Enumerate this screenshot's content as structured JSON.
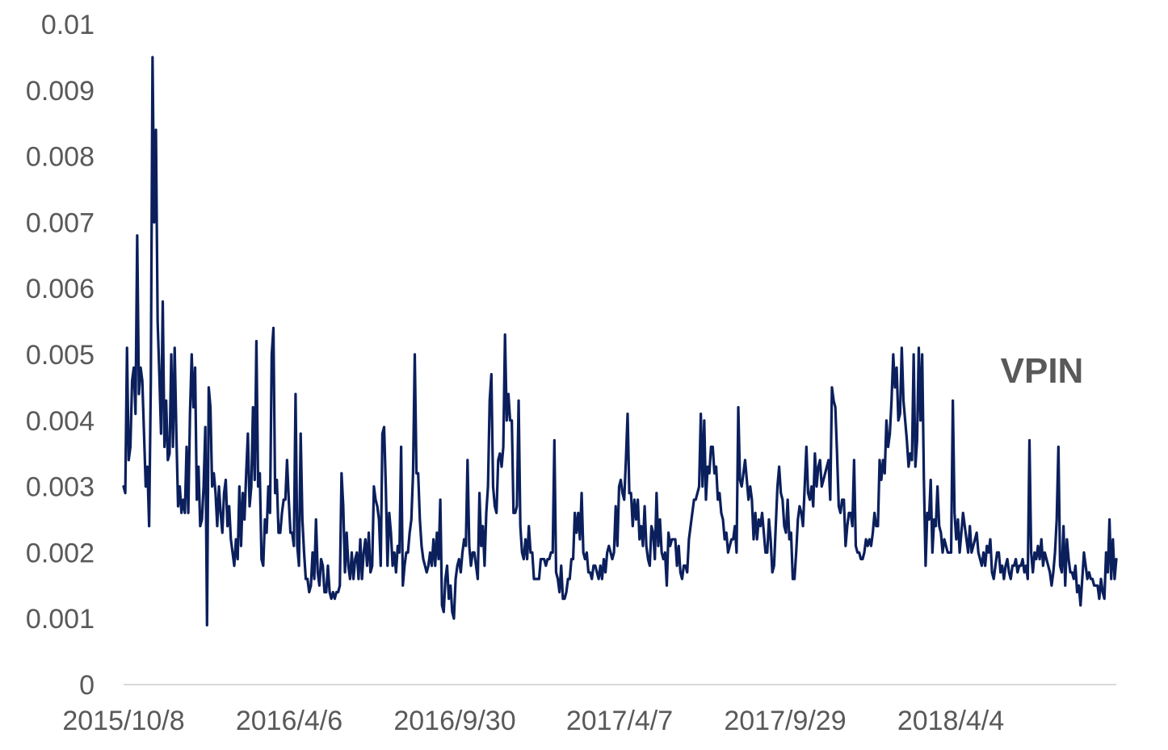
{
  "chart_data": {
    "type": "line",
    "title": "",
    "xlabel": "",
    "ylabel": "",
    "ylim": [
      0,
      0.01
    ],
    "yticks": [
      "0",
      "0.001",
      "0.002",
      "0.003",
      "0.004",
      "0.005",
      "0.006",
      "0.007",
      "0.008",
      "0.009",
      "0.01"
    ],
    "xticks": [
      "2015/10/8",
      "2016/4/6",
      "2016/9/30",
      "2017/4/7",
      "2017/9/29",
      "2018/4/4"
    ],
    "grid": false,
    "legend_position": "top-right",
    "color": "#0b1f5c",
    "series": [
      {
        "name": "VPIN",
        "values": [
          0.003,
          0.0029,
          0.0051,
          0.0034,
          0.0036,
          0.0046,
          0.0048,
          0.0041,
          0.0068,
          0.0044,
          0.0048,
          0.0046,
          0.0038,
          0.003,
          0.0033,
          0.0024,
          0.0046,
          0.0095,
          0.007,
          0.0084,
          0.0055,
          0.0047,
          0.0038,
          0.0058,
          0.0036,
          0.0043,
          0.0034,
          0.0035,
          0.005,
          0.0036,
          0.0051,
          0.0038,
          0.0027,
          0.003,
          0.0026,
          0.0028,
          0.0026,
          0.0036,
          0.0026,
          0.0041,
          0.005,
          0.0042,
          0.0048,
          0.0028,
          0.0033,
          0.0024,
          0.0025,
          0.003,
          0.0039,
          0.0009,
          0.0045,
          0.0042,
          0.003,
          0.0032,
          0.0029,
          0.0024,
          0.003,
          0.0026,
          0.0023,
          0.0029,
          0.0031,
          0.0024,
          0.0027,
          0.0022,
          0.002,
          0.0018,
          0.0022,
          0.0019,
          0.003,
          0.0021,
          0.0029,
          0.0025,
          0.0032,
          0.0038,
          0.0027,
          0.003,
          0.0042,
          0.0031,
          0.0052,
          0.003,
          0.0032,
          0.0019,
          0.0018,
          0.0025,
          0.0023,
          0.003,
          0.0026,
          0.005,
          0.0054,
          0.0029,
          0.0031,
          0.0023,
          0.0023,
          0.0026,
          0.0028,
          0.0028,
          0.0034,
          0.0028,
          0.0023,
          0.0023,
          0.0021,
          0.0044,
          0.0021,
          0.0018,
          0.0038,
          0.0025,
          0.002,
          0.0016,
          0.0016,
          0.0014,
          0.0015,
          0.002,
          0.0016,
          0.0025,
          0.0017,
          0.0015,
          0.0019,
          0.0018,
          0.0014,
          0.0014,
          0.0018,
          0.0014,
          0.0013,
          0.0014,
          0.0013,
          0.0014,
          0.0014,
          0.0015,
          0.0032,
          0.0027,
          0.0017,
          0.0023,
          0.0018,
          0.0016,
          0.002,
          0.0016,
          0.0019,
          0.002,
          0.0016,
          0.0022,
          0.0016,
          0.002,
          0.0022,
          0.0018,
          0.0023,
          0.0017,
          0.0018,
          0.003,
          0.0028,
          0.0027,
          0.0025,
          0.0018,
          0.0038,
          0.0039,
          0.003,
          0.0018,
          0.0026,
          0.0023,
          0.0018,
          0.002,
          0.0017,
          0.0021,
          0.002,
          0.0036,
          0.0015,
          0.0018,
          0.002,
          0.002,
          0.0023,
          0.0025,
          0.0032,
          0.005,
          0.0032,
          0.0032,
          0.0025,
          0.0021,
          0.0019,
          0.0018,
          0.0017,
          0.0018,
          0.002,
          0.0018,
          0.0022,
          0.0018,
          0.0023,
          0.0019,
          0.0028,
          0.0012,
          0.0011,
          0.0016,
          0.0018,
          0.0013,
          0.0015,
          0.0011,
          0.001,
          0.0016,
          0.0018,
          0.0019,
          0.0017,
          0.002,
          0.0022,
          0.0021,
          0.0034,
          0.0021,
          0.0018,
          0.002,
          0.002,
          0.0018,
          0.0016,
          0.0029,
          0.0021,
          0.0024,
          0.0018,
          0.0026,
          0.003,
          0.0043,
          0.0047,
          0.003,
          0.0027,
          0.0026,
          0.0034,
          0.0035,
          0.0033,
          0.0036,
          0.0053,
          0.004,
          0.0044,
          0.004,
          0.004,
          0.0026,
          0.0026,
          0.0027,
          0.0043,
          0.0024,
          0.002,
          0.0019,
          0.0022,
          0.0019,
          0.0024,
          0.002,
          0.002,
          0.0016,
          0.0016,
          0.0016,
          0.0016,
          0.0019,
          0.0019,
          0.0019,
          0.0018,
          0.0019,
          0.0019,
          0.002,
          0.002,
          0.0037,
          0.0017,
          0.0016,
          0.0014,
          0.0018,
          0.0013,
          0.0013,
          0.0014,
          0.0016,
          0.0016,
          0.0019,
          0.0019,
          0.0026,
          0.0023,
          0.0026,
          0.0022,
          0.0029,
          0.002,
          0.0019,
          0.002,
          0.0017,
          0.0017,
          0.0016,
          0.0018,
          0.0018,
          0.0017,
          0.0016,
          0.0018,
          0.0016,
          0.0019,
          0.0017,
          0.002,
          0.0021,
          0.002,
          0.0019,
          0.002,
          0.0027,
          0.0021,
          0.003,
          0.0031,
          0.0029,
          0.0028,
          0.0034,
          0.0041,
          0.0029,
          0.0029,
          0.0024,
          0.0028,
          0.0025,
          0.0028,
          0.0022,
          0.0024,
          0.0021,
          0.0027,
          0.0021,
          0.0019,
          0.0018,
          0.0024,
          0.0023,
          0.0019,
          0.0029,
          0.0021,
          0.0025,
          0.002,
          0.0019,
          0.002,
          0.0015,
          0.0023,
          0.0021,
          0.0022,
          0.0022,
          0.0022,
          0.0018,
          0.0021,
          0.0017,
          0.0016,
          0.0018,
          0.0018,
          0.0017,
          0.0022,
          0.0024,
          0.0026,
          0.0028,
          0.0028,
          0.0029,
          0.003,
          0.0041,
          0.003,
          0.004,
          0.0028,
          0.0033,
          0.0032,
          0.0036,
          0.0036,
          0.0032,
          0.0033,
          0.0028,
          0.0029,
          0.0026,
          0.0025,
          0.0022,
          0.0023,
          0.002,
          0.0021,
          0.0022,
          0.0022,
          0.0024,
          0.002,
          0.0042,
          0.0031,
          0.003,
          0.0032,
          0.0034,
          0.0031,
          0.0028,
          0.003,
          0.0028,
          0.0022,
          0.0026,
          0.0022,
          0.0025,
          0.0024,
          0.0026,
          0.0023,
          0.002,
          0.002,
          0.0025,
          0.0022,
          0.0017,
          0.0018,
          0.0024,
          0.003,
          0.0033,
          0.0029,
          0.0028,
          0.0024,
          0.0023,
          0.0028,
          0.0022,
          0.0023,
          0.0016,
          0.0016,
          0.002,
          0.0025,
          0.0027,
          0.0026,
          0.0024,
          0.003,
          0.0036,
          0.0029,
          0.0028,
          0.003,
          0.0027,
          0.0035,
          0.003,
          0.0033,
          0.0034,
          0.003,
          0.0031,
          0.0032,
          0.0033,
          0.0034,
          0.0028,
          0.0045,
          0.0043,
          0.0042,
          0.0035,
          0.0027,
          0.0026,
          0.0028,
          0.0028,
          0.0021,
          0.0024,
          0.0026,
          0.0026,
          0.0024,
          0.0034,
          0.0021,
          0.002,
          0.002,
          0.0019,
          0.0019,
          0.002,
          0.0022,
          0.0021,
          0.0022,
          0.0021,
          0.0023,
          0.0026,
          0.0024,
          0.0024,
          0.0034,
          0.0031,
          0.0034,
          0.0032,
          0.004,
          0.0036,
          0.0038,
          0.0043,
          0.005,
          0.0045,
          0.0048,
          0.004,
          0.0041,
          0.0051,
          0.0043,
          0.004,
          0.0037,
          0.0033,
          0.0035,
          0.0034,
          0.005,
          0.0033,
          0.0037,
          0.0051,
          0.004,
          0.005,
          0.0031,
          0.0018,
          0.0026,
          0.0025,
          0.0031,
          0.002,
          0.0025,
          0.0024,
          0.003,
          0.0024,
          0.0023,
          0.002,
          0.0022,
          0.0021,
          0.002,
          0.002,
          0.002,
          0.0043,
          0.0026,
          0.0022,
          0.0025,
          0.002,
          0.0023,
          0.0026,
          0.0024,
          0.0022,
          0.002,
          0.0024,
          0.002,
          0.0021,
          0.0022,
          0.0023,
          0.002,
          0.0019,
          0.0018,
          0.002,
          0.0018,
          0.0021,
          0.002,
          0.0022,
          0.0017,
          0.0016,
          0.0018,
          0.002,
          0.002,
          0.0017,
          0.0018,
          0.0016,
          0.0018,
          0.0019,
          0.0017,
          0.0016,
          0.0018,
          0.0018,
          0.0019,
          0.0017,
          0.0018,
          0.0018,
          0.0019,
          0.0017,
          0.0018,
          0.0016,
          0.0037,
          0.002,
          0.0017,
          0.002,
          0.0019,
          0.0021,
          0.0019,
          0.0022,
          0.0018,
          0.002,
          0.0019,
          0.0018,
          0.0017,
          0.0015,
          0.0017,
          0.002,
          0.0025,
          0.0036,
          0.0018,
          0.0017,
          0.0024,
          0.0015,
          0.0022,
          0.0019,
          0.0017,
          0.0017,
          0.0016,
          0.0018,
          0.0014,
          0.0015,
          0.0012,
          0.0016,
          0.002,
          0.0018,
          0.0016,
          0.0017,
          0.0016,
          0.0016,
          0.0015,
          0.0015,
          0.0015,
          0.0013,
          0.0016,
          0.0014,
          0.0013,
          0.002,
          0.0017,
          0.0025,
          0.0016,
          0.0022,
          0.0016,
          0.0019
        ]
      }
    ]
  }
}
